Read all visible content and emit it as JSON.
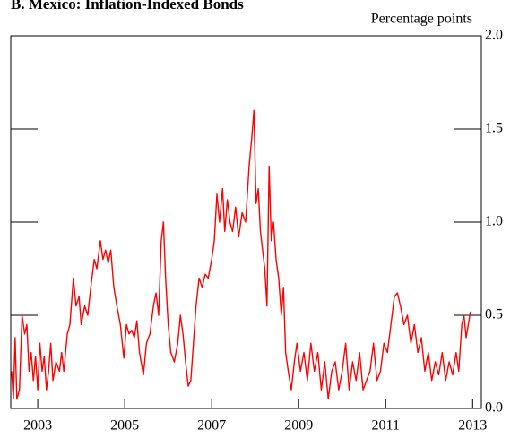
{
  "chart_data": {
    "type": "line",
    "title": "B. Mexico: Inflation-Indexed Bonds",
    "y_axis_label": "Percentage points",
    "xlim": [
      2002.38,
      2013.2
    ],
    "xticks": [
      2003,
      2005,
      2007,
      2009,
      2011,
      2013
    ],
    "ylim": [
      0,
      2
    ],
    "yticks": [
      {
        "value": 0,
        "label": "0.0"
      },
      0.5,
      {
        "value": 1,
        "label": "1.0"
      },
      1.5,
      {
        "value": 2,
        "label": "2.0"
      }
    ],
    "series": [
      {
        "color": "#ff0000",
        "x": [
          2002.4,
          2002.44,
          2002.48,
          2002.52,
          2002.58,
          2002.64,
          2002.7,
          2002.75,
          2002.8,
          2002.85,
          2002.9,
          2002.95,
          2003.0,
          2003.05,
          2003.1,
          2003.15,
          2003.2,
          2003.25,
          2003.3,
          2003.35,
          2003.42,
          2003.5,
          2003.55,
          2003.6,
          2003.68,
          2003.74,
          2003.82,
          2003.88,
          2003.95,
          2004.0,
          2004.08,
          2004.15,
          2004.22,
          2004.3,
          2004.36,
          2004.44,
          2004.5,
          2004.56,
          2004.62,
          2004.68,
          2004.75,
          2004.82,
          2004.9,
          2004.98,
          2005.04,
          2005.1,
          2005.16,
          2005.22,
          2005.28,
          2005.34,
          2005.43,
          2005.5,
          2005.58,
          2005.66,
          2005.72,
          2005.78,
          2005.84,
          2005.89,
          2005.94,
          2006.0,
          2006.06,
          2006.14,
          2006.22,
          2006.28,
          2006.34,
          2006.4,
          2006.46,
          2006.52,
          2006.58,
          2006.64,
          2006.71,
          2006.78,
          2006.85,
          2006.92,
          2007.0,
          2007.06,
          2007.12,
          2007.18,
          2007.25,
          2007.3,
          2007.36,
          2007.42,
          2007.48,
          2007.55,
          2007.62,
          2007.7,
          2007.78,
          2007.86,
          2007.92,
          2007.97,
          2008.02,
          2008.07,
          2008.12,
          2008.17,
          2008.22,
          2008.27,
          2008.32,
          2008.37,
          2008.42,
          2008.48,
          2008.54,
          2008.6,
          2008.65,
          2008.7,
          2008.76,
          2008.83,
          2008.9,
          2008.96,
          2009.04,
          2009.12,
          2009.2,
          2009.28,
          2009.36,
          2009.44,
          2009.52,
          2009.6,
          2009.68,
          2009.76,
          2009.84,
          2009.92,
          2010.0,
          2010.08,
          2010.16,
          2010.24,
          2010.32,
          2010.4,
          2010.48,
          2010.56,
          2010.64,
          2010.72,
          2010.8,
          2010.88,
          2010.96,
          2011.04,
          2011.12,
          2011.2,
          2011.27,
          2011.34,
          2011.42,
          2011.5,
          2011.58,
          2011.66,
          2011.74,
          2011.82,
          2011.9,
          2011.98,
          2012.06,
          2012.14,
          2012.22,
          2012.3,
          2012.38,
          2012.46,
          2012.54,
          2012.62,
          2012.68,
          2012.75,
          2012.8,
          2012.85,
          2012.9,
          2012.95
        ],
        "values": [
          0.2,
          0.05,
          0.38,
          0.05,
          0.1,
          0.5,
          0.4,
          0.45,
          0.2,
          0.3,
          0.15,
          0.28,
          0.1,
          0.35,
          0.2,
          0.28,
          0.1,
          0.2,
          0.35,
          0.15,
          0.25,
          0.2,
          0.3,
          0.2,
          0.4,
          0.45,
          0.7,
          0.55,
          0.6,
          0.45,
          0.55,
          0.5,
          0.65,
          0.8,
          0.75,
          0.9,
          0.8,
          0.85,
          0.78,
          0.85,
          0.65,
          0.55,
          0.45,
          0.27,
          0.45,
          0.4,
          0.42,
          0.38,
          0.47,
          0.3,
          0.18,
          0.35,
          0.4,
          0.55,
          0.62,
          0.5,
          0.9,
          1.0,
          0.7,
          0.45,
          0.3,
          0.25,
          0.35,
          0.5,
          0.4,
          0.25,
          0.12,
          0.15,
          0.35,
          0.55,
          0.7,
          0.65,
          0.72,
          0.7,
          0.8,
          0.9,
          1.15,
          1.0,
          1.18,
          0.95,
          1.12,
          1.0,
          0.95,
          1.08,
          0.92,
          1.05,
          1.0,
          1.3,
          1.45,
          1.6,
          1.1,
          1.18,
          0.95,
          0.85,
          0.75,
          0.55,
          1.3,
          0.9,
          1.0,
          0.8,
          0.7,
          0.5,
          0.65,
          0.3,
          0.2,
          0.1,
          0.25,
          0.35,
          0.2,
          0.3,
          0.15,
          0.35,
          0.2,
          0.3,
          0.1,
          0.25,
          0.05,
          0.2,
          0.25,
          0.1,
          0.2,
          0.35,
          0.1,
          0.25,
          0.15,
          0.3,
          0.1,
          0.15,
          0.2,
          0.35,
          0.15,
          0.2,
          0.35,
          0.3,
          0.45,
          0.6,
          0.62,
          0.55,
          0.45,
          0.5,
          0.35,
          0.45,
          0.3,
          0.38,
          0.2,
          0.3,
          0.15,
          0.25,
          0.18,
          0.3,
          0.15,
          0.25,
          0.18,
          0.3,
          0.2,
          0.45,
          0.5,
          0.38,
          0.45,
          0.52
        ]
      }
    ]
  }
}
